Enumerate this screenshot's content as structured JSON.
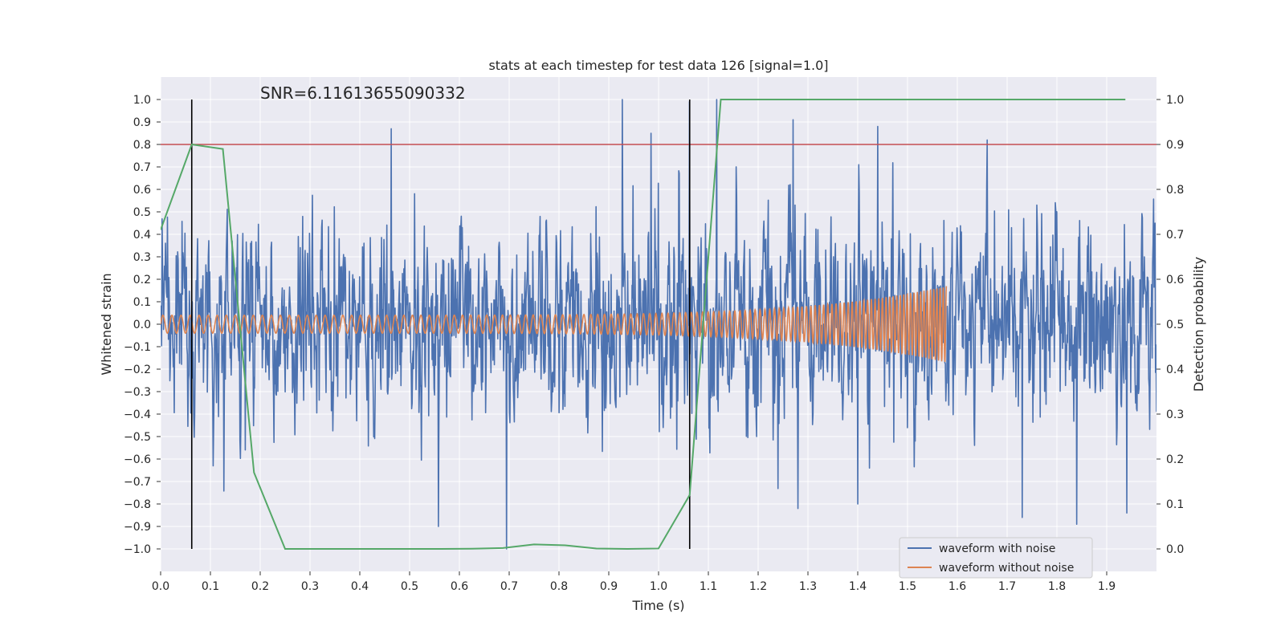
{
  "chart_data": {
    "type": "line",
    "title": "stats at each timestep for test data 126 [signal=1.0]",
    "xlabel": "Time (s)",
    "ylabel": "Whitened strain",
    "y2label": "Detection probability",
    "annotation": "SNR=6.11613655090332",
    "xlim": [
      0.0,
      2.0
    ],
    "ylim": [
      -1.1,
      1.1
    ],
    "y2lim": [
      -0.05,
      1.05
    ],
    "x_ticks": [
      0.0,
      0.1,
      0.2,
      0.3,
      0.4,
      0.5,
      0.6,
      0.7,
      0.8,
      0.9,
      1.0,
      1.1,
      1.2,
      1.3,
      1.4,
      1.5,
      1.6,
      1.7,
      1.8,
      1.9
    ],
    "x_tick_labels": [
      "0.0",
      "0.1",
      "0.2",
      "0.3",
      "0.4",
      "0.5",
      "0.6",
      "0.7",
      "0.8",
      "0.9",
      "1.0",
      "1.1",
      "1.2",
      "1.3",
      "1.4",
      "1.5",
      "1.6",
      "1.7",
      "1.8",
      "1.9"
    ],
    "y_ticks": [
      1.0,
      0.9,
      0.8,
      0.7,
      0.6,
      0.5,
      0.4,
      0.3,
      0.2,
      0.1,
      0.0,
      -0.1,
      -0.2,
      -0.3,
      -0.4,
      -0.5,
      -0.6,
      -0.7,
      -0.8,
      -0.9,
      -1.0
    ],
    "y_tick_labels": [
      "1.0",
      "0.9",
      "0.8",
      "0.7",
      "0.6",
      "0.5",
      "0.4",
      "0.3",
      "0.2",
      "0.1",
      "0.0",
      "−0.1",
      "−0.2",
      "−0.3",
      "−0.4",
      "−0.5",
      "−0.6",
      "−0.7",
      "−0.8",
      "−0.9",
      "−1.0"
    ],
    "y2_ticks": [
      1.0,
      0.9,
      0.8,
      0.7,
      0.6,
      0.5,
      0.4,
      0.3,
      0.2,
      0.1,
      0.0
    ],
    "y2_tick_labels": [
      "1.0",
      "0.9",
      "0.8",
      "0.7",
      "0.6",
      "0.5",
      "0.4",
      "0.3",
      "0.2",
      "0.1",
      "0.0"
    ],
    "grid": true,
    "legend_position": "bottom-right",
    "threshold_y2": 0.9,
    "vertical_lines_x": [
      0.0625,
      1.0625
    ],
    "series": [
      {
        "name": "waveform with noise",
        "color": "#4c72b0",
        "kind": "noise",
        "x_range": [
          0.0,
          2.0
        ],
        "samples": 2048,
        "amplitude_range": [
          -1.0,
          1.0
        ],
        "peaks": [
          {
            "x": 0.463,
            "y": 0.87
          },
          {
            "x": 0.927,
            "y": 1.0
          },
          {
            "x": 1.062,
            "y": 0.99
          },
          {
            "x": 1.117,
            "y": 1.0
          },
          {
            "x": 0.695,
            "y": -1.0
          },
          {
            "x": 0.558,
            "y": -0.9
          },
          {
            "x": 1.84,
            "y": -0.89
          },
          {
            "x": 1.66,
            "y": 0.82
          },
          {
            "x": 1.44,
            "y": 0.88
          },
          {
            "x": 1.27,
            "y": 0.91
          },
          {
            "x": 1.73,
            "y": -0.86
          },
          {
            "x": 1.94,
            "y": -0.84
          },
          {
            "x": 0.985,
            "y": 0.85
          },
          {
            "x": 1.4,
            "y": -0.8
          },
          {
            "x": 1.28,
            "y": -0.82
          }
        ]
      },
      {
        "name": "waveform without noise",
        "color": "#dd8452",
        "kind": "chirp",
        "x_range": [
          0.0,
          1.578
        ],
        "base_frequency_hz": 55,
        "final_frequency_hz": 160,
        "base_amplitude": 0.04,
        "peak_amplitude": 0.17
      },
      {
        "name": "detection probability",
        "color": "#55a868",
        "axis": "right",
        "x": [
          0.0,
          0.0625,
          0.125,
          0.1875,
          0.25,
          0.3125,
          0.375,
          0.4375,
          0.5,
          0.5625,
          0.625,
          0.6875,
          0.75,
          0.8125,
          0.875,
          0.9375,
          1.0,
          1.0625,
          1.125,
          1.1875,
          1.25,
          1.3125,
          1.375,
          1.4375,
          1.5,
          1.5625,
          1.625,
          1.6875,
          1.75,
          1.8125,
          1.875,
          1.9375
        ],
        "y": [
          0.71,
          0.9,
          0.89,
          0.17,
          0.0,
          0.0,
          0.0,
          0.0,
          0.0,
          0.0,
          0.0005,
          0.002,
          0.01,
          0.008,
          0.001,
          0.0,
          0.001,
          0.12,
          1.0,
          1.0,
          1.0,
          1.0,
          1.0,
          1.0,
          1.0,
          1.0,
          1.0,
          1.0,
          1.0,
          1.0,
          1.0,
          1.0
        ]
      }
    ],
    "colors": {
      "background": "#eaeaf2",
      "grid": "#ffffff",
      "threshold": "#c44e52",
      "vertical": "#000000"
    }
  }
}
